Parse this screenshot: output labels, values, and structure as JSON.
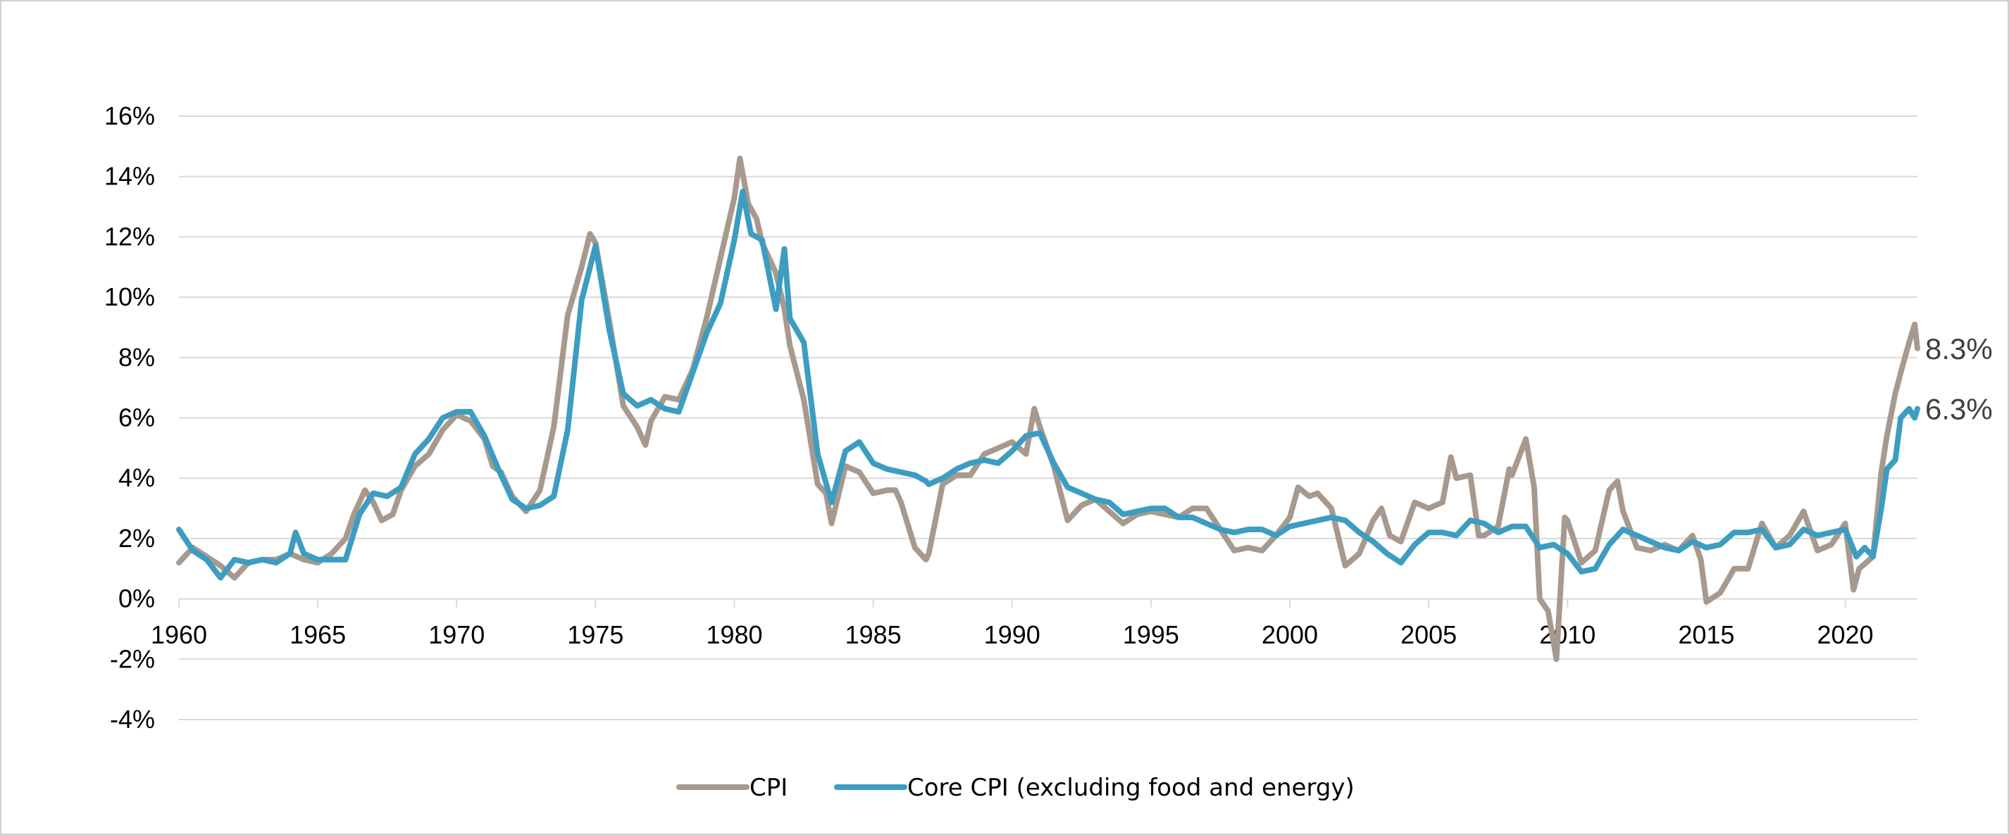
{
  "chart_data": {
    "type": "line",
    "title": "",
    "xlabel": "",
    "ylabel": "",
    "xlim": [
      1960,
      2022.6
    ],
    "ylim": [
      -4,
      16
    ],
    "x_ticks": [
      "1960",
      "1965",
      "1970",
      "1975",
      "1980",
      "1985",
      "1990",
      "1995",
      "2000",
      "2005",
      "2010",
      "2015",
      "2020"
    ],
    "y_ticks": [
      "16%",
      "14%",
      "12%",
      "10%",
      "8%",
      "6%",
      "4%",
      "2%",
      "0%",
      "-2%",
      "-4%"
    ],
    "grid": "horizontal",
    "legend_position": "bottom",
    "end_labels": [
      "8.3%",
      "6.3%"
    ],
    "series": [
      {
        "name": "CPI",
        "color": "#a8998e",
        "points": [
          [
            1960.0,
            1.2
          ],
          [
            1960.5,
            1.7
          ],
          [
            1961.0,
            1.4
          ],
          [
            1961.5,
            1.1
          ],
          [
            1962.0,
            0.7
          ],
          [
            1962.5,
            1.2
          ],
          [
            1963.0,
            1.3
          ],
          [
            1963.5,
            1.3
          ],
          [
            1964.0,
            1.5
          ],
          [
            1964.5,
            1.3
          ],
          [
            1965.0,
            1.2
          ],
          [
            1965.5,
            1.5
          ],
          [
            1966.0,
            2.0
          ],
          [
            1966.3,
            2.8
          ],
          [
            1966.7,
            3.6
          ],
          [
            1967.0,
            3.2
          ],
          [
            1967.3,
            2.6
          ],
          [
            1967.7,
            2.8
          ],
          [
            1968.0,
            3.6
          ],
          [
            1968.5,
            4.4
          ],
          [
            1969.0,
            4.8
          ],
          [
            1969.5,
            5.6
          ],
          [
            1970.0,
            6.1
          ],
          [
            1970.5,
            5.9
          ],
          [
            1971.0,
            5.3
          ],
          [
            1971.3,
            4.4
          ],
          [
            1971.6,
            4.2
          ],
          [
            1972.0,
            3.4
          ],
          [
            1972.5,
            2.9
          ],
          [
            1973.0,
            3.6
          ],
          [
            1973.5,
            5.7
          ],
          [
            1974.0,
            9.4
          ],
          [
            1974.5,
            11.0
          ],
          [
            1974.8,
            12.1
          ],
          [
            1975.0,
            11.8
          ],
          [
            1975.5,
            9.2
          ],
          [
            1976.0,
            6.4
          ],
          [
            1976.5,
            5.7
          ],
          [
            1976.8,
            5.1
          ],
          [
            1977.0,
            5.9
          ],
          [
            1977.5,
            6.7
          ],
          [
            1978.0,
            6.6
          ],
          [
            1978.5,
            7.6
          ],
          [
            1979.0,
            9.3
          ],
          [
            1979.5,
            11.3
          ],
          [
            1980.0,
            13.3
          ],
          [
            1980.2,
            14.6
          ],
          [
            1980.5,
            13.1
          ],
          [
            1980.8,
            12.6
          ],
          [
            1981.0,
            11.8
          ],
          [
            1981.5,
            10.8
          ],
          [
            1981.8,
            9.6
          ],
          [
            1982.0,
            8.4
          ],
          [
            1982.5,
            6.6
          ],
          [
            1983.0,
            3.8
          ],
          [
            1983.3,
            3.5
          ],
          [
            1983.5,
            2.5
          ],
          [
            1984.0,
            4.4
          ],
          [
            1984.5,
            4.2
          ],
          [
            1985.0,
            3.5
          ],
          [
            1985.5,
            3.6
          ],
          [
            1985.8,
            3.6
          ],
          [
            1986.0,
            3.2
          ],
          [
            1986.5,
            1.7
          ],
          [
            1986.9,
            1.3
          ],
          [
            1987.0,
            1.5
          ],
          [
            1987.5,
            3.8
          ],
          [
            1988.0,
            4.1
          ],
          [
            1988.5,
            4.1
          ],
          [
            1989.0,
            4.8
          ],
          [
            1989.5,
            5.0
          ],
          [
            1990.0,
            5.2
          ],
          [
            1990.5,
            4.8
          ],
          [
            1990.8,
            6.3
          ],
          [
            1991.0,
            5.7
          ],
          [
            1991.5,
            4.4
          ],
          [
            1992.0,
            2.6
          ],
          [
            1992.5,
            3.1
          ],
          [
            1993.0,
            3.3
          ],
          [
            1993.5,
            2.9
          ],
          [
            1994.0,
            2.5
          ],
          [
            1994.5,
            2.8
          ],
          [
            1995.0,
            2.9
          ],
          [
            1995.5,
            2.8
          ],
          [
            1996.0,
            2.7
          ],
          [
            1996.5,
            3.0
          ],
          [
            1997.0,
            3.0
          ],
          [
            1997.5,
            2.3
          ],
          [
            1998.0,
            1.6
          ],
          [
            1998.5,
            1.7
          ],
          [
            1999.0,
            1.6
          ],
          [
            1999.5,
            2.1
          ],
          [
            2000.0,
            2.7
          ],
          [
            2000.3,
            3.7
          ],
          [
            2000.7,
            3.4
          ],
          [
            2001.0,
            3.5
          ],
          [
            2001.5,
            3.0
          ],
          [
            2002.0,
            1.1
          ],
          [
            2002.5,
            1.5
          ],
          [
            2003.0,
            2.6
          ],
          [
            2003.3,
            3.0
          ],
          [
            2003.6,
            2.1
          ],
          [
            2004.0,
            1.9
          ],
          [
            2004.5,
            3.2
          ],
          [
            2005.0,
            3.0
          ],
          [
            2005.5,
            3.2
          ],
          [
            2005.8,
            4.7
          ],
          [
            2006.0,
            4.0
          ],
          [
            2006.5,
            4.1
          ],
          [
            2006.8,
            2.1
          ],
          [
            2007.0,
            2.1
          ],
          [
            2007.5,
            2.4
          ],
          [
            2007.9,
            4.3
          ],
          [
            2008.0,
            4.1
          ],
          [
            2008.5,
            5.3
          ],
          [
            2008.8,
            3.7
          ],
          [
            2009.0,
            0.0
          ],
          [
            2009.3,
            -0.4
          ],
          [
            2009.6,
            -2.0
          ],
          [
            2009.9,
            2.7
          ],
          [
            2010.0,
            2.6
          ],
          [
            2010.5,
            1.2
          ],
          [
            2011.0,
            1.6
          ],
          [
            2011.5,
            3.6
          ],
          [
            2011.8,
            3.9
          ],
          [
            2012.0,
            2.9
          ],
          [
            2012.5,
            1.7
          ],
          [
            2013.0,
            1.6
          ],
          [
            2013.5,
            1.8
          ],
          [
            2014.0,
            1.6
          ],
          [
            2014.5,
            2.1
          ],
          [
            2014.8,
            1.3
          ],
          [
            2015.0,
            -0.1
          ],
          [
            2015.5,
            0.2
          ],
          [
            2016.0,
            1.0
          ],
          [
            2016.5,
            1.0
          ],
          [
            2017.0,
            2.5
          ],
          [
            2017.5,
            1.7
          ],
          [
            2018.0,
            2.1
          ],
          [
            2018.5,
            2.9
          ],
          [
            2019.0,
            1.6
          ],
          [
            2019.5,
            1.8
          ],
          [
            2020.0,
            2.5
          ],
          [
            2020.3,
            0.3
          ],
          [
            2020.5,
            1.0
          ],
          [
            2021.0,
            1.4
          ],
          [
            2021.3,
            4.2
          ],
          [
            2021.5,
            5.4
          ],
          [
            2021.8,
            6.8
          ],
          [
            2022.0,
            7.5
          ],
          [
            2022.3,
            8.5
          ],
          [
            2022.5,
            9.1
          ],
          [
            2022.6,
            8.3
          ]
        ]
      },
      {
        "name": "Core CPI (excluding food and energy)",
        "color": "#3d9dc1",
        "points": [
          [
            1960.0,
            2.3
          ],
          [
            1960.5,
            1.6
          ],
          [
            1961.0,
            1.3
          ],
          [
            1961.5,
            0.7
          ],
          [
            1962.0,
            1.3
          ],
          [
            1962.5,
            1.2
          ],
          [
            1963.0,
            1.3
          ],
          [
            1963.5,
            1.2
          ],
          [
            1964.0,
            1.5
          ],
          [
            1964.2,
            2.2
          ],
          [
            1964.5,
            1.5
          ],
          [
            1965.0,
            1.3
          ],
          [
            1965.5,
            1.3
          ],
          [
            1966.0,
            1.3
          ],
          [
            1966.5,
            2.8
          ],
          [
            1967.0,
            3.5
          ],
          [
            1967.5,
            3.4
          ],
          [
            1968.0,
            3.7
          ],
          [
            1968.5,
            4.8
          ],
          [
            1969.0,
            5.3
          ],
          [
            1969.5,
            6.0
          ],
          [
            1970.0,
            6.2
          ],
          [
            1970.5,
            6.2
          ],
          [
            1971.0,
            5.4
          ],
          [
            1971.5,
            4.3
          ],
          [
            1972.0,
            3.3
          ],
          [
            1972.5,
            3.0
          ],
          [
            1973.0,
            3.1
          ],
          [
            1973.5,
            3.4
          ],
          [
            1974.0,
            5.6
          ],
          [
            1974.5,
            9.9
          ],
          [
            1975.0,
            11.7
          ],
          [
            1975.5,
            8.9
          ],
          [
            1976.0,
            6.8
          ],
          [
            1976.5,
            6.4
          ],
          [
            1977.0,
            6.6
          ],
          [
            1977.5,
            6.3
          ],
          [
            1978.0,
            6.2
          ],
          [
            1978.5,
            7.5
          ],
          [
            1979.0,
            8.8
          ],
          [
            1979.5,
            9.8
          ],
          [
            1980.0,
            11.9
          ],
          [
            1980.3,
            13.5
          ],
          [
            1980.6,
            12.1
          ],
          [
            1981.0,
            11.9
          ],
          [
            1981.5,
            9.6
          ],
          [
            1981.8,
            11.6
          ],
          [
            1982.0,
            9.3
          ],
          [
            1982.5,
            8.5
          ],
          [
            1983.0,
            4.8
          ],
          [
            1983.5,
            3.2
          ],
          [
            1984.0,
            4.9
          ],
          [
            1984.5,
            5.2
          ],
          [
            1985.0,
            4.5
          ],
          [
            1985.5,
            4.3
          ],
          [
            1986.0,
            4.2
          ],
          [
            1986.5,
            4.1
          ],
          [
            1986.9,
            3.9
          ],
          [
            1987.0,
            3.8
          ],
          [
            1987.5,
            4.0
          ],
          [
            1988.0,
            4.3
          ],
          [
            1988.5,
            4.5
          ],
          [
            1989.0,
            4.6
          ],
          [
            1989.5,
            4.5
          ],
          [
            1990.0,
            4.9
          ],
          [
            1990.5,
            5.4
          ],
          [
            1991.0,
            5.5
          ],
          [
            1991.5,
            4.5
          ],
          [
            1992.0,
            3.7
          ],
          [
            1992.5,
            3.5
          ],
          [
            1993.0,
            3.3
          ],
          [
            1993.5,
            3.2
          ],
          [
            1994.0,
            2.8
          ],
          [
            1994.5,
            2.9
          ],
          [
            1995.0,
            3.0
          ],
          [
            1995.5,
            3.0
          ],
          [
            1996.0,
            2.7
          ],
          [
            1996.5,
            2.7
          ],
          [
            1997.0,
            2.5
          ],
          [
            1997.5,
            2.3
          ],
          [
            1998.0,
            2.2
          ],
          [
            1998.5,
            2.3
          ],
          [
            1999.0,
            2.3
          ],
          [
            1999.5,
            2.1
          ],
          [
            2000.0,
            2.4
          ],
          [
            2000.5,
            2.5
          ],
          [
            2001.0,
            2.6
          ],
          [
            2001.5,
            2.7
          ],
          [
            2002.0,
            2.6
          ],
          [
            2002.5,
            2.2
          ],
          [
            2003.0,
            1.9
          ],
          [
            2003.5,
            1.5
          ],
          [
            2004.0,
            1.2
          ],
          [
            2004.5,
            1.8
          ],
          [
            2005.0,
            2.2
          ],
          [
            2005.5,
            2.2
          ],
          [
            2006.0,
            2.1
          ],
          [
            2006.5,
            2.6
          ],
          [
            2007.0,
            2.5
          ],
          [
            2007.5,
            2.2
          ],
          [
            2008.0,
            2.4
          ],
          [
            2008.5,
            2.4
          ],
          [
            2009.0,
            1.7
          ],
          [
            2009.5,
            1.8
          ],
          [
            2010.0,
            1.5
          ],
          [
            2010.5,
            0.9
          ],
          [
            2011.0,
            1.0
          ],
          [
            2011.5,
            1.8
          ],
          [
            2012.0,
            2.3
          ],
          [
            2012.5,
            2.1
          ],
          [
            2013.0,
            1.9
          ],
          [
            2013.5,
            1.7
          ],
          [
            2014.0,
            1.6
          ],
          [
            2014.5,
            1.9
          ],
          [
            2015.0,
            1.7
          ],
          [
            2015.5,
            1.8
          ],
          [
            2016.0,
            2.2
          ],
          [
            2016.5,
            2.2
          ],
          [
            2017.0,
            2.3
          ],
          [
            2017.5,
            1.7
          ],
          [
            2018.0,
            1.8
          ],
          [
            2018.5,
            2.3
          ],
          [
            2019.0,
            2.1
          ],
          [
            2019.5,
            2.2
          ],
          [
            2020.0,
            2.3
          ],
          [
            2020.4,
            1.4
          ],
          [
            2020.7,
            1.7
          ],
          [
            2021.0,
            1.4
          ],
          [
            2021.3,
            3.0
          ],
          [
            2021.5,
            4.3
          ],
          [
            2021.8,
            4.6
          ],
          [
            2022.0,
            6.0
          ],
          [
            2022.3,
            6.3
          ],
          [
            2022.5,
            6.0
          ],
          [
            2022.6,
            6.3
          ]
        ]
      }
    ]
  }
}
